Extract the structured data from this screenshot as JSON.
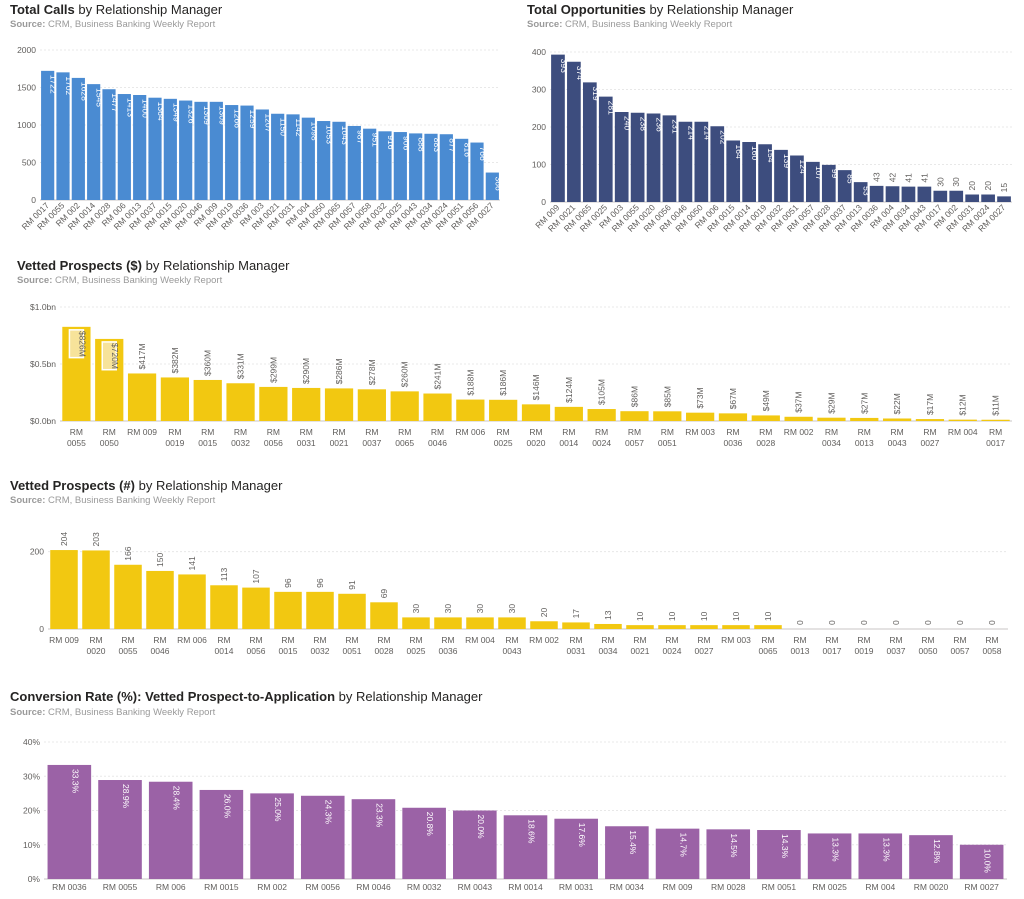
{
  "chart_data": [
    {
      "id": "calls",
      "type": "bar",
      "title_bold": "Total Calls",
      "title_rest": " by Relationship Manager",
      "source_label": "Source:",
      "source_text": " CRM, Business Banking Weekly Report",
      "categories": [
        "RM 0017",
        "RM 0055",
        "RM 002",
        "RM 0014",
        "RM 0028",
        "RM 006",
        "RM 0013",
        "RM 0037",
        "RM 0015",
        "RM 0020",
        "RM 0046",
        "RM 009",
        "RM 0019",
        "RM 0036",
        "RM 003",
        "RM 0021",
        "RM 0031",
        "RM 004",
        "RM 0050",
        "RM 0065",
        "RM 0057",
        "RM 0058",
        "RM 0032",
        "RM 0025",
        "RM 0043",
        "RM 0034",
        "RM 0024",
        "RM 0051",
        "RM 0056",
        "RM 0027"
      ],
      "values": [
        1722,
        1702,
        1628,
        1545,
        1477,
        1413,
        1400,
        1364,
        1349,
        1326,
        1309,
        1309,
        1266,
        1259,
        1207,
        1150,
        1142,
        1098,
        1053,
        1043,
        987,
        951,
        916,
        906,
        888,
        883,
        877,
        816,
        766,
        366
      ],
      "labels": [
        "1722",
        "1702",
        "1628",
        "1545",
        "1477",
        "1413",
        "1400",
        "1364",
        "1349",
        "1326",
        "1309",
        "1309",
        "1266",
        "1259",
        "1207",
        "1150",
        "1142",
        "1098",
        "1053",
        "1043",
        "987",
        "951",
        "916",
        "906",
        "888",
        "883",
        "877",
        "816",
        "766",
        "366"
      ],
      "yticks": [
        "0",
        "500",
        "1000",
        "1500",
        "2000"
      ],
      "ytick_values": [
        0,
        500,
        1000,
        1500,
        2000
      ],
      "ylim": [
        0,
        2000
      ],
      "grid": true,
      "color": "#4a8bd2"
    },
    {
      "id": "opps",
      "type": "bar",
      "title_bold": "Total Opportunities",
      "title_rest": " by Relationship Manager",
      "source_label": "Source:",
      "source_text": " CRM, Business Banking Weekly Report",
      "categories": [
        "RM 009",
        "RM 0021",
        "RM 0065",
        "RM 0025",
        "RM 003",
        "RM 0055",
        "RM 0020",
        "RM 0056",
        "RM 0046",
        "RM 0050",
        "RM 006",
        "RM 0015",
        "RM 0014",
        "RM 0019",
        "RM 0032",
        "RM 0051",
        "RM 0057",
        "RM 0028",
        "RM 0037",
        "RM 0013",
        "RM 0036",
        "RM 004",
        "RM 0034",
        "RM 0043",
        "RM 0017",
        "RM 002",
        "RM 0031",
        "RM 0024",
        "RM 0027"
      ],
      "values": [
        393,
        374,
        319,
        281,
        240,
        238,
        236,
        231,
        214,
        214,
        202,
        164,
        160,
        154,
        139,
        124,
        107,
        99,
        85,
        53,
        43,
        42,
        41,
        41,
        30,
        30,
        20,
        20,
        15
      ],
      "labels": [
        "393",
        "374",
        "319",
        "281",
        "240",
        "238",
        "236",
        "231",
        "214",
        "214",
        "202",
        "164",
        "160",
        "154",
        "139",
        "124",
        "107",
        "99",
        "85",
        "53",
        "43",
        "42",
        "41",
        "41",
        "30",
        "30",
        "20",
        "20",
        "15"
      ],
      "yticks": [
        "0",
        "100",
        "200",
        "300",
        "400"
      ],
      "ytick_values": [
        0,
        100,
        200,
        300,
        400
      ],
      "ylim": [
        0,
        400
      ],
      "grid": true,
      "color": "#3d4d7e"
    },
    {
      "id": "vetted-usd",
      "type": "bar",
      "title_bold": "Vetted Prospects ($)",
      "title_rest": " by Relationship Manager",
      "source_label": "Source:",
      "source_text": " CRM, Business Banking Weekly Report",
      "categories": [
        [
          "RM",
          "0055"
        ],
        [
          "RM",
          "0050"
        ],
        [
          "RM 009"
        ],
        [
          "RM",
          "0019"
        ],
        [
          "RM",
          "0015"
        ],
        [
          "RM",
          "0032"
        ],
        [
          "RM",
          "0056"
        ],
        [
          "RM",
          "0031"
        ],
        [
          "RM",
          "0021"
        ],
        [
          "RM",
          "0037"
        ],
        [
          "RM",
          "0065"
        ],
        [
          "RM",
          "0046"
        ],
        [
          "RM 006"
        ],
        [
          "RM",
          "0025"
        ],
        [
          "RM",
          "0020"
        ],
        [
          "RM",
          "0014"
        ],
        [
          "RM",
          "0024"
        ],
        [
          "RM",
          "0057"
        ],
        [
          "RM",
          "0051"
        ],
        [
          "RM 003"
        ],
        [
          "RM",
          "0036"
        ],
        [
          "RM",
          "0028"
        ],
        [
          "RM 002"
        ],
        [
          "RM",
          "0034"
        ],
        [
          "RM",
          "0013"
        ],
        [
          "RM",
          "0043"
        ],
        [
          "RM",
          "0027"
        ],
        [
          "RM 004"
        ],
        [
          "RM",
          "0017"
        ]
      ],
      "values": [
        826,
        720,
        417,
        382,
        360,
        331,
        299,
        290,
        286,
        278,
        260,
        241,
        188,
        186,
        146,
        124,
        105,
        86,
        85,
        73,
        67,
        49,
        37,
        29,
        27,
        22,
        17,
        12,
        11
      ],
      "labels": [
        "$826M",
        "$720M",
        "$417M",
        "$382M",
        "$360M",
        "$331M",
        "$299M",
        "$290M",
        "$286M",
        "$278M",
        "$260M",
        "$241M",
        "$188M",
        "$186M",
        "$146M",
        "$124M",
        "$105M",
        "$86M",
        "$85M",
        "$73M",
        "$67M",
        "$49M",
        "$37M",
        "$29M",
        "$27M",
        "$22M",
        "$17M",
        "$12M",
        "$11M"
      ],
      "yticks": [
        "$0.0bn",
        "$0.5bn",
        "$1.0bn"
      ],
      "ytick_values": [
        0,
        500,
        1000
      ],
      "ylim": [
        0,
        1000
      ],
      "grid": true,
      "highlight_top": 2,
      "color": "#f2c811"
    },
    {
      "id": "vetted-count",
      "type": "bar",
      "title_bold": "Vetted Prospects (#)",
      "title_rest": " by Relationship Manager",
      "source_label": "Source:",
      "source_text": " CRM, Business Banking Weekly Report",
      "categories": [
        [
          "RM 009"
        ],
        [
          "RM",
          "0020"
        ],
        [
          "RM",
          "0055"
        ],
        [
          "RM",
          "0046"
        ],
        [
          "RM 006"
        ],
        [
          "RM",
          "0014"
        ],
        [
          "RM",
          "0056"
        ],
        [
          "RM",
          "0015"
        ],
        [
          "RM",
          "0032"
        ],
        [
          "RM",
          "0051"
        ],
        [
          "RM",
          "0028"
        ],
        [
          "RM",
          "0025"
        ],
        [
          "RM",
          "0036"
        ],
        [
          "RM 004"
        ],
        [
          "RM",
          "0043"
        ],
        [
          "RM 002"
        ],
        [
          "RM",
          "0031"
        ],
        [
          "RM",
          "0034"
        ],
        [
          "RM",
          "0021"
        ],
        [
          "RM",
          "0024"
        ],
        [
          "RM",
          "0027"
        ],
        [
          "RM 003"
        ],
        [
          "RM",
          "0065"
        ],
        [
          "RM",
          "0013"
        ],
        [
          "RM",
          "0017"
        ],
        [
          "RM",
          "0019"
        ],
        [
          "RM",
          "0037"
        ],
        [
          "RM",
          "0050"
        ],
        [
          "RM",
          "0057"
        ],
        [
          "RM",
          "0058"
        ]
      ],
      "values": [
        204,
        203,
        166,
        150,
        141,
        113,
        107,
        96,
        96,
        91,
        69,
        30,
        30,
        30,
        30,
        20,
        17,
        13,
        10,
        10,
        10,
        10,
        10,
        0,
        0,
        0,
        0,
        0,
        0,
        0
      ],
      "labels": [
        "204",
        "203",
        "166",
        "150",
        "141",
        "113",
        "107",
        "96",
        "96",
        "91",
        "69",
        "30",
        "30",
        "30",
        "30",
        "20",
        "17",
        "13",
        "10",
        "10",
        "10",
        "10",
        "10",
        "0",
        "0",
        "0",
        "0",
        "0",
        "0",
        "0"
      ],
      "yticks": [
        "0",
        "200"
      ],
      "ytick_values": [
        0,
        200
      ],
      "ylim": [
        0,
        230
      ],
      "grid": true,
      "color": "#f2c811"
    },
    {
      "id": "conversion",
      "type": "bar",
      "title_bold": "Conversion Rate (%): Vetted Prospect-to-Application",
      "title_rest": " by Relationship Manager",
      "source_label": "Source:",
      "source_text": " CRM, Business Banking Weekly Report",
      "categories": [
        "RM 0036",
        "RM 0055",
        "RM 006",
        "RM 0015",
        "RM 002",
        "RM 0056",
        "RM 0046",
        "RM 0032",
        "RM 0043",
        "RM 0014",
        "RM 0031",
        "RM 0034",
        "RM 009",
        "RM 0028",
        "RM 0051",
        "RM 0025",
        "RM 004",
        "RM 0020",
        "RM 0027"
      ],
      "values": [
        33.3,
        28.9,
        28.4,
        26.0,
        25.0,
        24.3,
        23.3,
        20.8,
        20.0,
        18.6,
        17.6,
        15.4,
        14.7,
        14.5,
        14.3,
        13.3,
        13.3,
        12.8,
        10.0
      ],
      "labels": [
        "33.3%",
        "28.9%",
        "28.4%",
        "26.0%",
        "25.0%",
        "24.3%",
        "23.3%",
        "20.8%",
        "20.0%",
        "18.6%",
        "17.6%",
        "15.4%",
        "14.7%",
        "14.5%",
        "14.3%",
        "13.3%",
        "13.3%",
        "12.8%",
        "10.0%"
      ],
      "yticks": [
        "0%",
        "10%",
        "20%",
        "30%",
        "40%"
      ],
      "ytick_values": [
        0,
        10,
        20,
        30,
        40
      ],
      "ylim": [
        0,
        40
      ],
      "grid": true,
      "color": "#9b62a6"
    }
  ]
}
